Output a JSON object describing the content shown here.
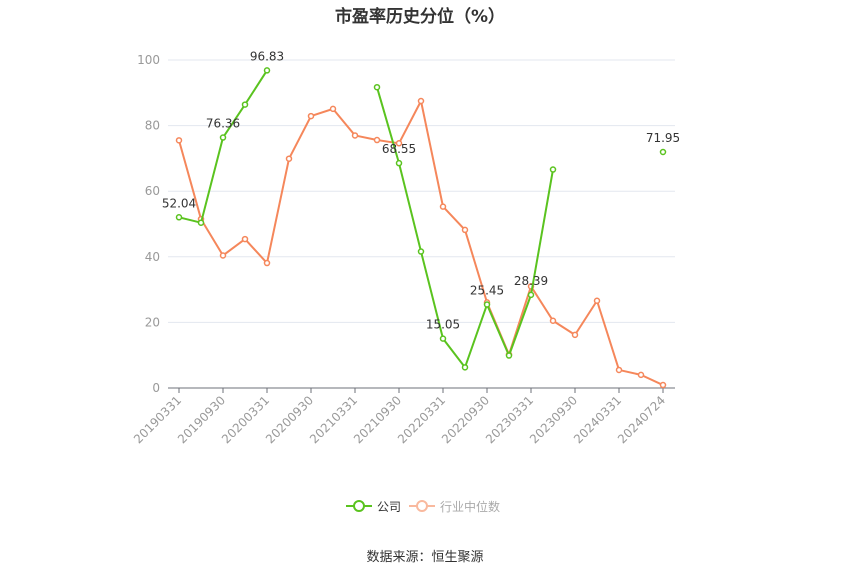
{
  "title": "市盈率历史分位（%）",
  "legend": {
    "items": [
      {
        "label": "公司",
        "color": "#5ac31f",
        "text_color": "#333333"
      },
      {
        "label": "行业中位数",
        "color": "#f5875b",
        "symbol_color": "#f9b99e",
        "text_color": "#aaaaaa"
      }
    ]
  },
  "footer": "数据来源：恒生聚源",
  "colors": {
    "company": "#5ac31f",
    "industry": "#f5875b",
    "grid": "#e3e7ef",
    "axis": "#6e7079",
    "tick_label": "#999999",
    "data_label": "#333333"
  },
  "chart_data": {
    "type": "line",
    "title": "市盈率历史分位（%）",
    "xlabel": "",
    "ylabel": "",
    "ylim": [
      0,
      100
    ],
    "yticks": [
      0,
      20,
      40,
      60,
      80,
      100
    ],
    "grid": true,
    "legend_position": "bottom",
    "categories": [
      "20190331",
      "20190630",
      "20190930",
      "20191231",
      "20200331",
      "20200630",
      "20200930",
      "20201231",
      "20210331",
      "20210630",
      "20210930",
      "20211231",
      "20220331",
      "20220630",
      "20220930",
      "20221231",
      "20230331",
      "20230630",
      "20230930",
      "20231231",
      "20240331",
      "20240630",
      "20240724"
    ],
    "shown_xtick_labels": [
      "20190331",
      "20190930",
      "20200331",
      "20200930",
      "20210331",
      "20210930",
      "20220331",
      "20220930",
      "20230331",
      "20230930",
      "20240331",
      "20240724"
    ],
    "series": [
      {
        "name": "公司",
        "color": "#5ac31f",
        "values": [
          52.04,
          50.4,
          76.36,
          86.4,
          96.83,
          null,
          null,
          null,
          null,
          91.7,
          68.55,
          41.6,
          15.05,
          6.3,
          25.45,
          9.9,
          28.39,
          66.6,
          null,
          null,
          null,
          null,
          71.95
        ],
        "labeled_points": {
          "0": "52.04",
          "2": "76.36",
          "4": "96.83",
          "10": "68.55",
          "12": "15.05",
          "14": "25.45",
          "16": "28.39",
          "22": "71.95"
        }
      },
      {
        "name": "行业中位数",
        "color": "#f5875b",
        "values": [
          75.5,
          51.5,
          40.4,
          45.4,
          38.1,
          69.9,
          82.9,
          85.1,
          77.0,
          75.6,
          74.6,
          87.5,
          55.3,
          48.2,
          26.1,
          10.2,
          31.0,
          20.5,
          16.2,
          26.6,
          5.5,
          4.0,
          0.9
        ]
      }
    ]
  }
}
